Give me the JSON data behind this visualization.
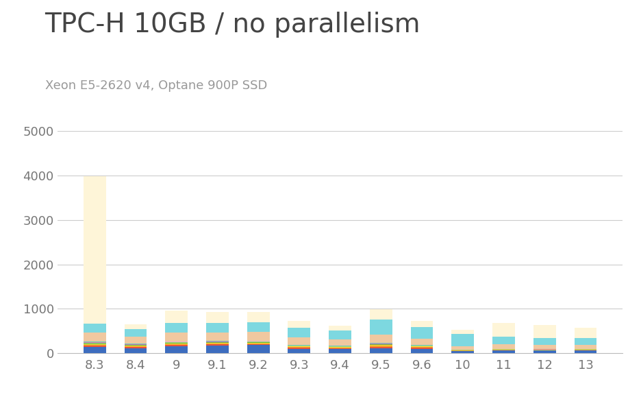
{
  "title": "TPC-H 10GB / no parallelism",
  "subtitle": "Xeon E5-2620 v4, Optane 900P SSD",
  "categories": [
    "8.3",
    "8.4",
    "9",
    "9.1",
    "9.2",
    "9.3",
    "9.4",
    "9.5",
    "9.6",
    "10",
    "11",
    "12",
    "13"
  ],
  "ylim": [
    0,
    5000
  ],
  "yticks": [
    0,
    1000,
    2000,
    3000,
    4000,
    5000
  ],
  "background_color": "#ffffff",
  "title_color": "#444444",
  "subtitle_color": "#999999",
  "grid_color": "#cccccc",
  "layers": [
    {
      "color": "#3d6dbf",
      "values": [
        150,
        120,
        155,
        175,
        185,
        100,
        90,
        115,
        105,
        50,
        65,
        60,
        65
      ]
    },
    {
      "color": "#e8533a",
      "values": [
        25,
        22,
        28,
        25,
        22,
        25,
        20,
        35,
        20,
        8,
        8,
        8,
        8
      ]
    },
    {
      "color": "#f5a623",
      "values": [
        18,
        16,
        20,
        18,
        16,
        15,
        15,
        20,
        15,
        6,
        6,
        6,
        6
      ]
    },
    {
      "color": "#f5d63a",
      "values": [
        15,
        14,
        15,
        14,
        14,
        12,
        12,
        15,
        12,
        5,
        5,
        5,
        5
      ]
    },
    {
      "color": "#62b548",
      "values": [
        15,
        13,
        15,
        13,
        13,
        10,
        10,
        13,
        10,
        5,
        5,
        5,
        5
      ]
    },
    {
      "color": "#a8d87a",
      "values": [
        12,
        10,
        12,
        10,
        10,
        8,
        8,
        10,
        8,
        4,
        4,
        4,
        4
      ]
    },
    {
      "color": "#c87ab0",
      "values": [
        10,
        8,
        10,
        8,
        8,
        6,
        6,
        8,
        6,
        3,
        3,
        3,
        3
      ]
    },
    {
      "color": "#e8b0d0",
      "values": [
        8,
        7,
        8,
        7,
        7,
        5,
        5,
        7,
        5,
        2,
        2,
        2,
        2
      ]
    },
    {
      "color": "#70c8c0",
      "values": [
        8,
        6,
        8,
        6,
        6,
        5,
        5,
        6,
        5,
        2,
        2,
        2,
        2
      ]
    },
    {
      "color": "#f0c8a0",
      "values": [
        200,
        155,
        195,
        195,
        195,
        175,
        140,
        185,
        140,
        75,
        100,
        95,
        90
      ]
    },
    {
      "color": "#7dd8e0",
      "values": [
        200,
        175,
        220,
        220,
        230,
        215,
        195,
        350,
        270,
        280,
        175,
        155,
        155
      ]
    },
    {
      "color": "#fef5d8",
      "values": [
        3320,
        110,
        270,
        245,
        230,
        150,
        115,
        235,
        130,
        95,
        310,
        285,
        230
      ]
    }
  ],
  "bar_width": 0.55,
  "title_fontsize": 28,
  "subtitle_fontsize": 13,
  "tick_fontsize": 13,
  "tick_color": "#777777"
}
